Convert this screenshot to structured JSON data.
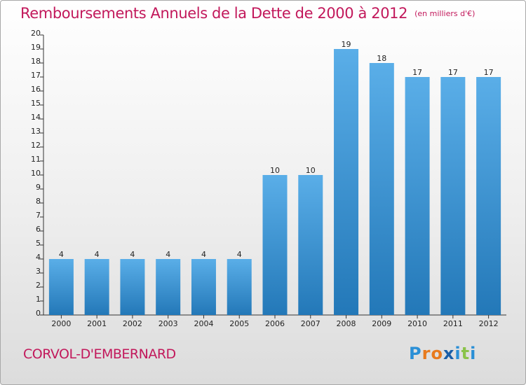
{
  "title": "Remboursements Annuels de la Dette de 2000 à 2012",
  "subtitle": "(en milliers d'€)",
  "commune": "CORVOL-D'EMBERNARD",
  "logo": {
    "letters": [
      "P",
      "r",
      "o",
      "x",
      "i",
      "t",
      "i"
    ],
    "colors": [
      "#2a8fd6",
      "#e87a1d",
      "#e87a1d",
      "#1a5fa8",
      "#2a8fd6",
      "#8bc34a",
      "#2a8fd6"
    ]
  },
  "colors": {
    "bar_light": "#5aaee8",
    "bar_dark": "#2378b8",
    "title": "#c2185b"
  },
  "chart_data": {
    "type": "bar",
    "title": "Remboursements Annuels de la Dette de 2000 à 2012",
    "subtitle": "(en milliers d'€)",
    "categories": [
      "2000",
      "2001",
      "2002",
      "2003",
      "2004",
      "2005",
      "2006",
      "2007",
      "2008",
      "2009",
      "2010",
      "2011",
      "2012"
    ],
    "values": [
      4,
      4,
      4,
      4,
      4,
      4,
      10,
      10,
      19,
      18,
      17,
      17,
      17
    ],
    "xlabel": "",
    "ylabel": "",
    "ylim": [
      0,
      20
    ],
    "yticks": [
      0,
      1,
      2,
      3,
      4,
      5,
      6,
      7,
      8,
      9,
      10,
      11,
      12,
      13,
      14,
      15,
      16,
      17,
      18,
      19,
      20
    ],
    "grid": false,
    "legend": "none",
    "data_labels": true
  }
}
